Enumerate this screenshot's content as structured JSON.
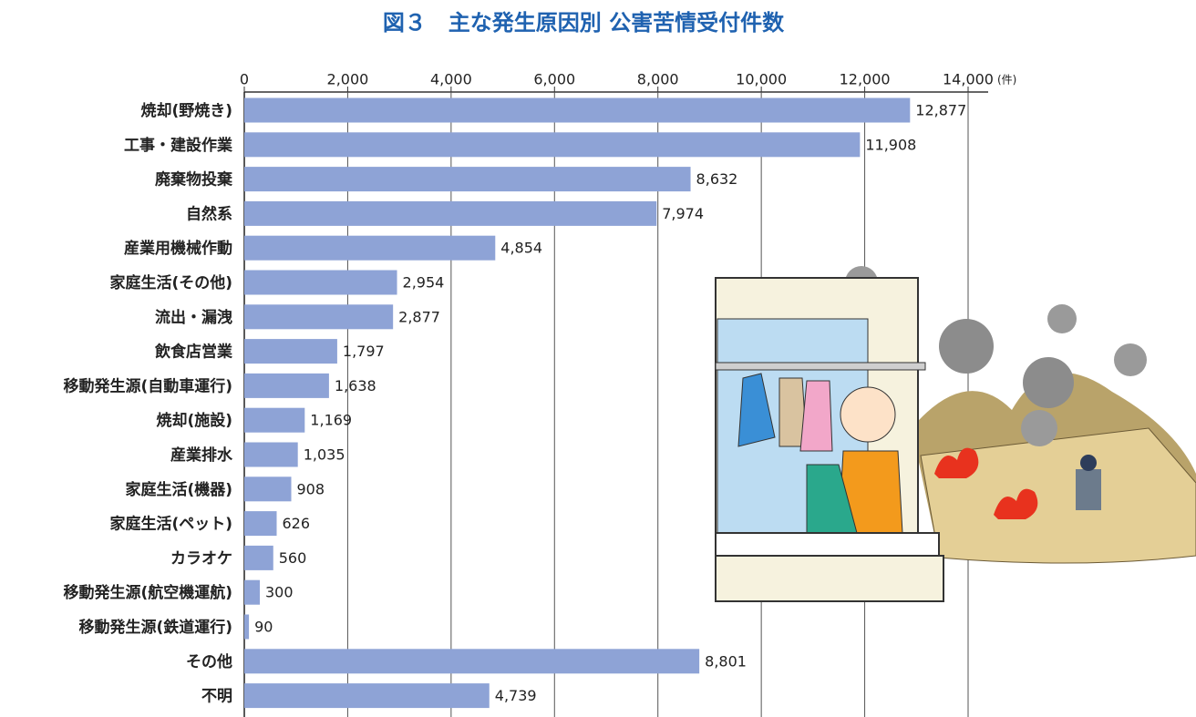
{
  "chart_data": {
    "type": "hbar",
    "title": "図３　主な発生原因別 公害苦情受付件数",
    "x_unit": "(件)",
    "categories": [
      "焼却(野焼き)",
      "工事・建設作業",
      "廃棄物投棄",
      "自然系",
      "産業用機械作動",
      "家庭生活(その他)",
      "流出・漏洩",
      "飲食店営業",
      "移動発生源(自動車運行)",
      "焼却(施設)",
      "産業排水",
      "家庭生活(機器)",
      "家庭生活(ペット)",
      "カラオケ",
      "移動発生源(航空機運航)",
      "移動発生源(鉄道運行)",
      "その他",
      "不明"
    ],
    "values": [
      12877,
      11908,
      8632,
      7974,
      4854,
      2954,
      2877,
      1797,
      1638,
      1169,
      1035,
      908,
      626,
      560,
      300,
      90,
      8801,
      4739
    ],
    "value_labels": [
      "12,877",
      "11,908",
      "8,632",
      "7,974",
      "4,854",
      "2,954",
      "2,877",
      "1,797",
      "1,638",
      "1,169",
      "1,035",
      "908",
      "626",
      "560",
      "300",
      "90",
      "8,801",
      "4,739"
    ],
    "color": "#8ea3d6",
    "xlim": [
      0,
      14000
    ],
    "xticks": [
      0,
      {
        "value": 2000,
        "label": "2,000"
      },
      {
        "value": 4000,
        "label": "4,000"
      },
      {
        "value": 6000,
        "label": "6,000"
      },
      {
        "value": 8000,
        "label": "8,000"
      },
      {
        "value": 10000,
        "label": "10,000"
      },
      {
        "value": 12000,
        "label": "12,000"
      },
      {
        "value": 14000,
        "label": "14,000"
      }
    ],
    "grid": true
  }
}
